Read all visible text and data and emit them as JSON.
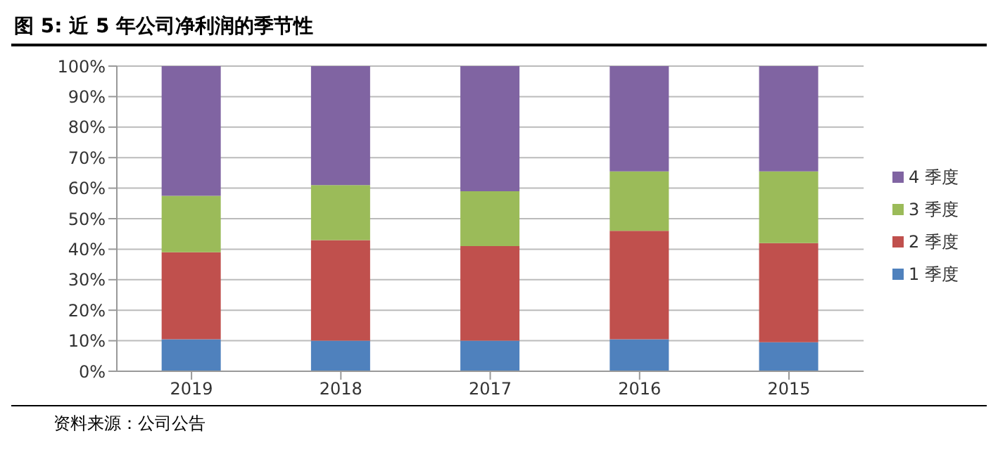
{
  "chart_data": {
    "type": "bar",
    "title": "图 5:  近 5 年公司净利润的季节性",
    "stacked": true,
    "grid": "y",
    "legend": "right",
    "categories": [
      "2019",
      "2018",
      "2017",
      "2016",
      "2015"
    ],
    "series": [
      {
        "name": "1 季度",
        "color": "#4f81bd",
        "values": [
          10.5,
          10,
          10,
          10.5,
          9.5
        ]
      },
      {
        "name": "2 季度",
        "color": "#c0504d",
        "values": [
          28.5,
          33,
          31,
          35.5,
          32.5
        ]
      },
      {
        "name": "3 季度",
        "color": "#9bbb59",
        "values": [
          18.5,
          18,
          18,
          19.5,
          23.5
        ]
      },
      {
        "name": "4 季度",
        "color": "#8064a2",
        "values": [
          42.5,
          39,
          41,
          34.5,
          34.5
        ]
      }
    ],
    "ylim": [
      0,
      100
    ],
    "yticks": [
      {
        "value": 0,
        "label": "0%"
      },
      {
        "value": 10,
        "label": "10%"
      },
      {
        "value": 20,
        "label": "20%"
      },
      {
        "value": 30,
        "label": "30%"
      },
      {
        "value": 40,
        "label": "40%"
      },
      {
        "value": 50,
        "label": "50%"
      },
      {
        "value": 60,
        "label": "60%"
      },
      {
        "value": 70,
        "label": "70%"
      },
      {
        "value": 80,
        "label": "80%"
      },
      {
        "value": 90,
        "label": "90%"
      },
      {
        "value": 100,
        "label": "100%"
      }
    ],
    "annotations": [
      "资料来源：公司公告"
    ]
  }
}
